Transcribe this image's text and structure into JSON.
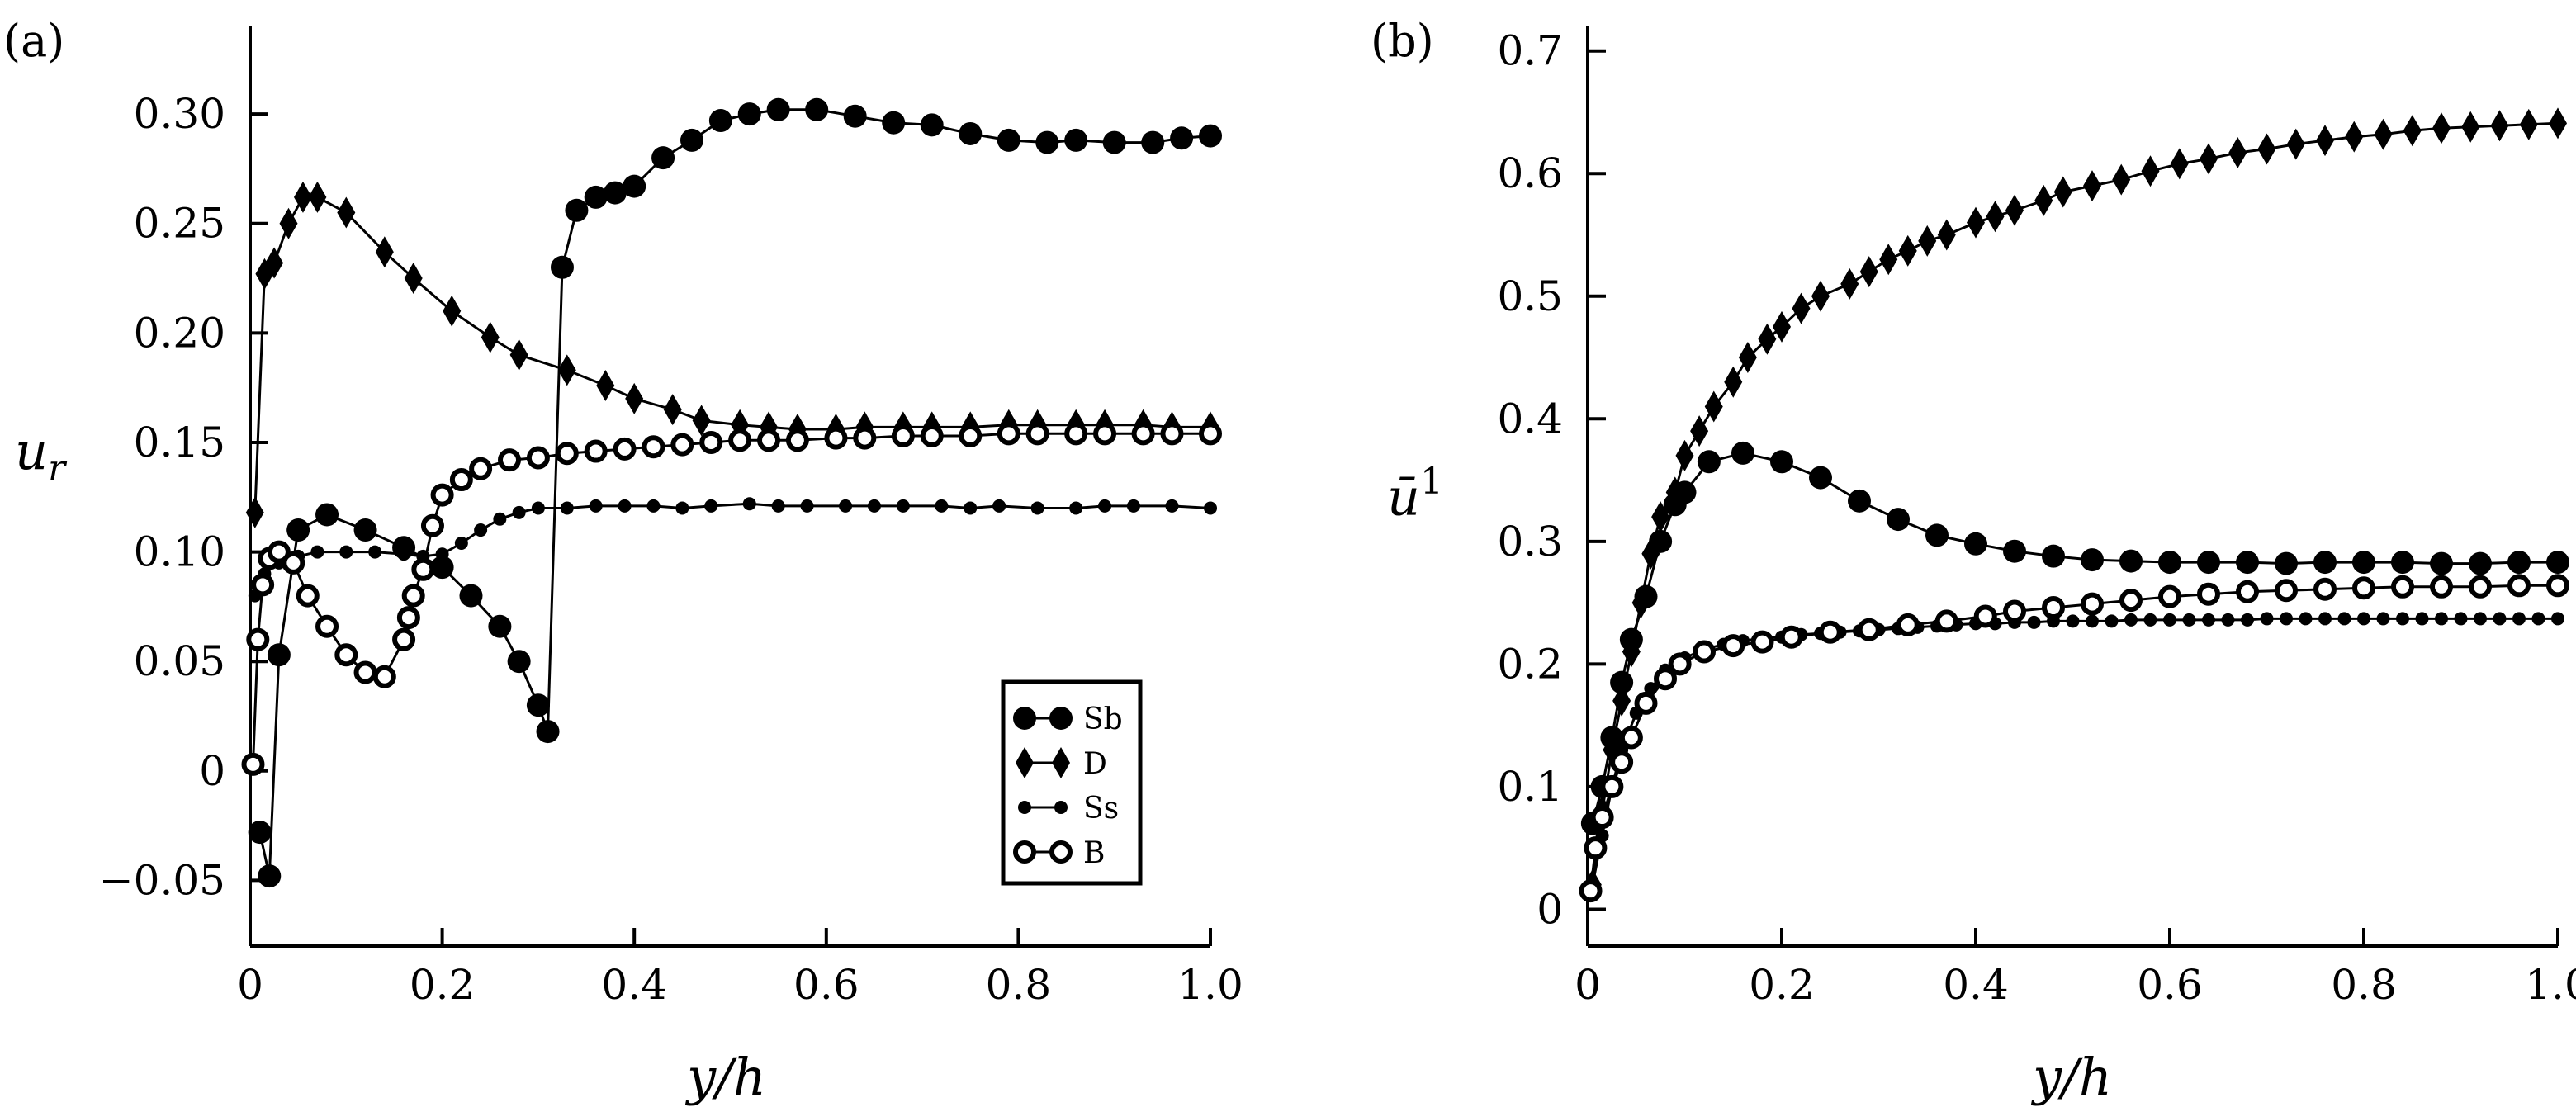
{
  "chart_data": [
    {
      "type": "line",
      "panel_label": "(a)",
      "ylabel_main": "u",
      "ylabel_sub": "r",
      "xlabel": "y/h",
      "xlim": [
        0,
        1.0
      ],
      "ylim": [
        -0.08,
        0.34
      ],
      "xticks": [
        0,
        0.2,
        0.4,
        0.6,
        0.8,
        1.0
      ],
      "xtick_labels": [
        "0",
        "0.2",
        "0.4",
        "0.6",
        "0.8",
        "1.0"
      ],
      "yticks": [
        -0.05,
        0,
        0.05,
        0.1,
        0.15,
        0.2,
        0.25,
        0.3
      ],
      "ytick_labels": [
        "−0.05",
        "0",
        "0.05",
        "0.10",
        "0.15",
        "0.20",
        "0.25",
        "0.30"
      ],
      "grid": false,
      "legend_position": "bottom-right",
      "series": [
        {
          "name": "Sb",
          "marker": "filled-circle",
          "x": [
            0.01,
            0.02,
            0.03,
            0.05,
            0.08,
            0.12,
            0.16,
            0.2,
            0.23,
            0.26,
            0.28,
            0.3,
            0.31,
            0.325,
            0.34,
            0.36,
            0.38,
            0.4,
            0.43,
            0.46,
            0.49,
            0.52,
            0.55,
            0.59,
            0.63,
            0.67,
            0.71,
            0.75,
            0.79,
            0.83,
            0.86,
            0.9,
            0.94,
            0.97,
            1.0
          ],
          "y": [
            -0.028,
            -0.048,
            0.053,
            0.11,
            0.117,
            0.11,
            0.102,
            0.093,
            0.08,
            0.066,
            0.05,
            0.03,
            0.018,
            0.23,
            0.256,
            0.262,
            0.264,
            0.267,
            0.28,
            0.288,
            0.297,
            0.3,
            0.302,
            0.302,
            0.299,
            0.296,
            0.295,
            0.291,
            0.288,
            0.287,
            0.288,
            0.287,
            0.287,
            0.289,
            0.29
          ]
        },
        {
          "name": "D",
          "marker": "filled-diamond",
          "x": [
            0.005,
            0.015,
            0.025,
            0.04,
            0.055,
            0.07,
            0.1,
            0.14,
            0.17,
            0.21,
            0.25,
            0.28,
            0.33,
            0.37,
            0.4,
            0.44,
            0.47,
            0.51,
            0.54,
            0.57,
            0.61,
            0.64,
            0.68,
            0.71,
            0.75,
            0.79,
            0.82,
            0.86,
            0.89,
            0.93,
            0.96,
            1.0
          ],
          "y": [
            0.118,
            0.227,
            0.232,
            0.25,
            0.262,
            0.262,
            0.255,
            0.237,
            0.225,
            0.21,
            0.198,
            0.19,
            0.183,
            0.176,
            0.17,
            0.165,
            0.16,
            0.158,
            0.157,
            0.156,
            0.156,
            0.157,
            0.157,
            0.157,
            0.157,
            0.158,
            0.158,
            0.158,
            0.158,
            0.158,
            0.157,
            0.157
          ]
        },
        {
          "name": "Ss",
          "marker": "small-filled-circle",
          "x": [
            0.005,
            0.015,
            0.03,
            0.05,
            0.07,
            0.1,
            0.13,
            0.16,
            0.18,
            0.2,
            0.22,
            0.24,
            0.26,
            0.28,
            0.3,
            0.33,
            0.36,
            0.39,
            0.42,
            0.45,
            0.48,
            0.52,
            0.55,
            0.58,
            0.62,
            0.65,
            0.68,
            0.72,
            0.75,
            0.78,
            0.82,
            0.86,
            0.89,
            0.92,
            0.96,
            1.0
          ],
          "y": [
            0.08,
            0.09,
            0.095,
            0.098,
            0.1,
            0.1,
            0.1,
            0.099,
            0.098,
            0.099,
            0.104,
            0.11,
            0.115,
            0.118,
            0.12,
            0.12,
            0.121,
            0.121,
            0.121,
            0.12,
            0.121,
            0.122,
            0.121,
            0.121,
            0.121,
            0.121,
            0.121,
            0.121,
            0.12,
            0.121,
            0.12,
            0.12,
            0.121,
            0.121,
            0.121,
            0.12
          ]
        },
        {
          "name": "B",
          "marker": "open-circle",
          "x": [
            0.003,
            0.008,
            0.013,
            0.02,
            0.03,
            0.045,
            0.06,
            0.08,
            0.1,
            0.12,
            0.14,
            0.16,
            0.165,
            0.17,
            0.18,
            0.19,
            0.2,
            0.22,
            0.24,
            0.27,
            0.3,
            0.33,
            0.36,
            0.39,
            0.42,
            0.45,
            0.48,
            0.51,
            0.54,
            0.57,
            0.61,
            0.64,
            0.68,
            0.71,
            0.75,
            0.79,
            0.82,
            0.86,
            0.89,
            0.93,
            0.96,
            1.0
          ],
          "y": [
            0.003,
            0.06,
            0.085,
            0.097,
            0.1,
            0.095,
            0.08,
            0.066,
            0.053,
            0.045,
            0.043,
            0.06,
            0.07,
            0.08,
            0.092,
            0.112,
            0.126,
            0.133,
            0.138,
            0.142,
            0.143,
            0.145,
            0.146,
            0.147,
            0.148,
            0.149,
            0.15,
            0.151,
            0.151,
            0.151,
            0.152,
            0.152,
            0.153,
            0.153,
            0.153,
            0.154,
            0.154,
            0.154,
            0.154,
            0.154,
            0.154,
            0.154
          ]
        }
      ]
    },
    {
      "type": "line",
      "panel_label": "(b)",
      "ylabel_main": "ū",
      "ylabel_sup": "1",
      "xlabel": "y/h",
      "xlim": [
        0,
        1.0
      ],
      "ylim": [
        -0.03,
        0.72
      ],
      "xticks": [
        0,
        0.2,
        0.4,
        0.6,
        0.8,
        1.0
      ],
      "xtick_labels": [
        "0",
        "0.2",
        "0.4",
        "0.6",
        "0.8",
        "1.0"
      ],
      "yticks": [
        0,
        0.1,
        0.2,
        0.3,
        0.4,
        0.5,
        0.6,
        0.7
      ],
      "ytick_labels": [
        "0",
        "0.1",
        "0.2",
        "0.3",
        "0.4",
        "0.5",
        "0.6",
        "0.7"
      ],
      "grid": false,
      "series": [
        {
          "name": "Sb",
          "marker": "filled-circle",
          "x": [
            0.005,
            0.015,
            0.025,
            0.035,
            0.045,
            0.06,
            0.075,
            0.09,
            0.1,
            0.125,
            0.16,
            0.2,
            0.24,
            0.28,
            0.32,
            0.36,
            0.4,
            0.44,
            0.48,
            0.52,
            0.56,
            0.6,
            0.64,
            0.68,
            0.72,
            0.76,
            0.8,
            0.84,
            0.88,
            0.92,
            0.96,
            1.0
          ],
          "y": [
            0.07,
            0.1,
            0.14,
            0.185,
            0.22,
            0.255,
            0.3,
            0.33,
            0.34,
            0.365,
            0.372,
            0.365,
            0.352,
            0.333,
            0.318,
            0.305,
            0.298,
            0.292,
            0.288,
            0.285,
            0.284,
            0.283,
            0.283,
            0.283,
            0.282,
            0.283,
            0.283,
            0.283,
            0.282,
            0.282,
            0.283,
            0.283
          ]
        },
        {
          "name": "D",
          "marker": "filled-diamond",
          "x": [
            0.005,
            0.015,
            0.025,
            0.035,
            0.045,
            0.055,
            0.065,
            0.075,
            0.09,
            0.1,
            0.115,
            0.13,
            0.15,
            0.165,
            0.185,
            0.2,
            0.22,
            0.24,
            0.27,
            0.29,
            0.31,
            0.33,
            0.35,
            0.37,
            0.4,
            0.42,
            0.44,
            0.47,
            0.49,
            0.52,
            0.55,
            0.58,
            0.61,
            0.64,
            0.67,
            0.7,
            0.73,
            0.76,
            0.79,
            0.82,
            0.85,
            0.88,
            0.91,
            0.94,
            0.97,
            1.0
          ],
          "y": [
            0.02,
            0.08,
            0.13,
            0.17,
            0.21,
            0.25,
            0.29,
            0.32,
            0.34,
            0.37,
            0.39,
            0.41,
            0.43,
            0.45,
            0.465,
            0.475,
            0.49,
            0.5,
            0.51,
            0.52,
            0.53,
            0.537,
            0.545,
            0.55,
            0.56,
            0.565,
            0.57,
            0.578,
            0.585,
            0.59,
            0.595,
            0.602,
            0.608,
            0.612,
            0.617,
            0.62,
            0.624,
            0.627,
            0.63,
            0.632,
            0.635,
            0.637,
            0.638,
            0.639,
            0.64,
            0.641
          ]
        },
        {
          "name": "Ss",
          "marker": "small-filled-circle",
          "x": [
            0.005,
            0.015,
            0.025,
            0.035,
            0.05,
            0.065,
            0.08,
            0.1,
            0.12,
            0.14,
            0.16,
            0.18,
            0.2,
            0.22,
            0.24,
            0.26,
            0.28,
            0.3,
            0.32,
            0.34,
            0.36,
            0.38,
            0.4,
            0.42,
            0.44,
            0.46,
            0.48,
            0.5,
            0.52,
            0.54,
            0.56,
            0.58,
            0.6,
            0.62,
            0.64,
            0.66,
            0.68,
            0.7,
            0.72,
            0.74,
            0.76,
            0.78,
            0.8,
            0.82,
            0.84,
            0.86,
            0.88,
            0.9,
            0.92,
            0.94,
            0.96,
            0.98,
            1.0
          ],
          "y": [
            0.02,
            0.06,
            0.1,
            0.13,
            0.16,
            0.18,
            0.195,
            0.205,
            0.212,
            0.216,
            0.219,
            0.221,
            0.222,
            0.224,
            0.225,
            0.226,
            0.227,
            0.228,
            0.229,
            0.23,
            0.231,
            0.232,
            0.233,
            0.233,
            0.234,
            0.234,
            0.235,
            0.235,
            0.235,
            0.235,
            0.236,
            0.236,
            0.236,
            0.236,
            0.236,
            0.236,
            0.236,
            0.237,
            0.237,
            0.237,
            0.237,
            0.237,
            0.237,
            0.237,
            0.237,
            0.237,
            0.237,
            0.237,
            0.237,
            0.237,
            0.237,
            0.237,
            0.237
          ]
        },
        {
          "name": "B",
          "marker": "open-circle",
          "x": [
            0.003,
            0.008,
            0.015,
            0.025,
            0.035,
            0.045,
            0.06,
            0.08,
            0.095,
            0.12,
            0.15,
            0.18,
            0.21,
            0.25,
            0.29,
            0.33,
            0.37,
            0.41,
            0.44,
            0.48,
            0.52,
            0.56,
            0.6,
            0.64,
            0.68,
            0.72,
            0.76,
            0.8,
            0.84,
            0.88,
            0.92,
            0.96,
            1.0
          ],
          "y": [
            0.015,
            0.05,
            0.075,
            0.1,
            0.12,
            0.14,
            0.168,
            0.188,
            0.2,
            0.21,
            0.215,
            0.218,
            0.222,
            0.226,
            0.228,
            0.232,
            0.235,
            0.239,
            0.243,
            0.246,
            0.249,
            0.252,
            0.255,
            0.257,
            0.259,
            0.26,
            0.261,
            0.262,
            0.263,
            0.263,
            0.263,
            0.264,
            0.264
          ]
        }
      ]
    }
  ],
  "legend": {
    "entries": [
      {
        "label": "Sb",
        "marker": "filled-circle"
      },
      {
        "label": "D",
        "marker": "filled-diamond"
      },
      {
        "label": "Ss",
        "marker": "small-filled-circle"
      },
      {
        "label": "B",
        "marker": "open-circle"
      }
    ]
  }
}
